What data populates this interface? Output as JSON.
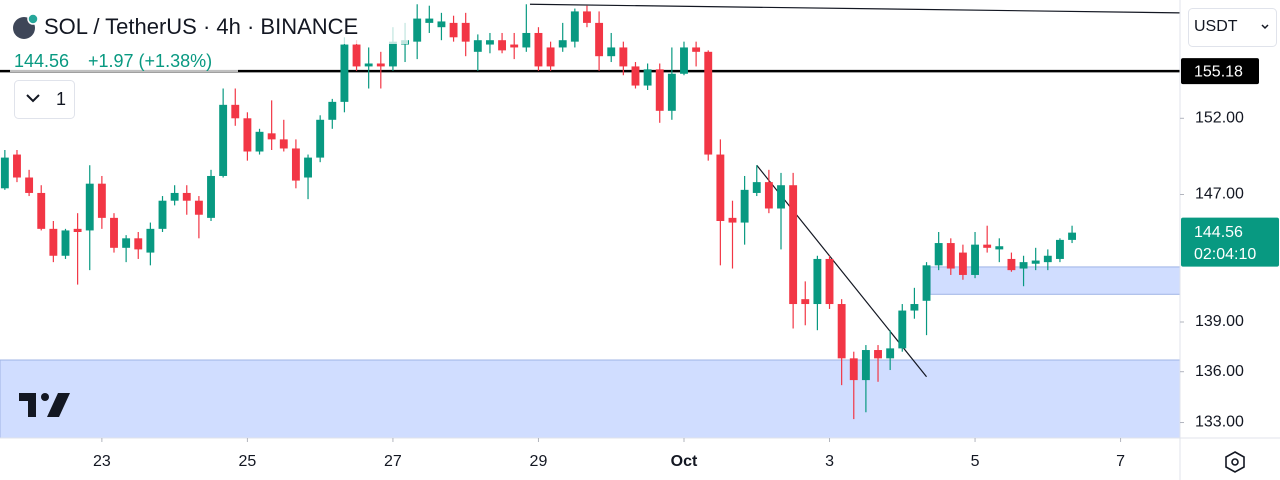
{
  "chart_data": {
    "type": "candlestick",
    "title": "SOL / TetherUS · 4h · BINANCE",
    "change": "+1.97 (+1.38%)",
    "indicators": "1",
    "currency": "USDT",
    "countdown": "02:04:10",
    "log": true,
    "up_color": "#089981",
    "down_color": "#f23645",
    "open": [
      147.4,
      149.6,
      148.1,
      147.1,
      144.8,
      143.1,
      144.8,
      144.7,
      147.7,
      145.5,
      143.6,
      144.2,
      143.3,
      144.8,
      146.6,
      147.1,
      146.6,
      145.5,
      148.2,
      152.9,
      152.0,
      149.8,
      151.0,
      150.6,
      150.0,
      148.1,
      149.4,
      151.9,
      153.1,
      157.0,
      155.5,
      155.7,
      155.5,
      157.0,
      157.2,
      158.5,
      158.2,
      158.5,
      158.5,
      156.5,
      157.0,
      157.3,
      157.0,
      156.8,
      157.8,
      156.8,
      156.8,
      157.2,
      159.3,
      158.5,
      156.2,
      156.8,
      155.5,
      154.2,
      155.3,
      152.5,
      155.0,
      156.8,
      156.5,
      149.6,
      145.5,
      145.2,
      147.1,
      147.8,
      146.1,
      147.6,
      140.4,
      140.1,
      142.9,
      140.1,
      136.8,
      135.5,
      137.3,
      136.8,
      137.4,
      139.7,
      140.3,
      142.5,
      143.9,
      143.3,
      141.9,
      143.8,
      143.5,
      142.9,
      142.3,
      142.6,
      142.7,
      142.9,
      144.1
    ],
    "high": [
      149.9,
      149.9,
      148.6,
      147.6,
      145.3,
      144.8,
      145.8,
      148.9,
      148.2,
      145.8,
      144.4,
      144.6,
      145.2,
      146.9,
      147.6,
      147.6,
      146.9,
      148.6,
      154.0,
      154.0,
      152.4,
      151.3,
      153.2,
      151.9,
      150.6,
      149.6,
      152.2,
      153.3,
      157.5,
      157.3,
      156.8,
      156.5,
      158.2,
      158.5,
      159.8,
      159.7,
      159.2,
      159.0,
      159.2,
      157.7,
      157.8,
      157.8,
      157.8,
      159.8,
      158.2,
      157.2,
      158.5,
      159.5,
      159.7,
      159.3,
      157.8,
      157.2,
      155.8,
      155.7,
      155.7,
      156.8,
      157.2,
      157.2,
      156.6,
      150.6,
      146.6,
      148.2,
      148.9,
      148.6,
      148.4,
      148.4,
      141.5,
      143.1,
      143.1,
      140.4,
      137.2,
      137.6,
      137.6,
      138.5,
      140.1,
      141.1,
      142.7,
      144.6,
      144.2,
      143.8,
      144.6,
      145.0,
      144.2,
      143.3,
      143.1,
      143.6,
      143.5,
      144.2,
      145.0
    ],
    "low": [
      147.3,
      147.8,
      146.9,
      144.7,
      142.7,
      142.9,
      141.3,
      142.2,
      144.8,
      143.3,
      142.7,
      142.9,
      142.5,
      144.6,
      146.3,
      145.7,
      144.2,
      145.3,
      148.1,
      151.5,
      149.2,
      149.6,
      149.9,
      149.8,
      147.4,
      146.7,
      149.1,
      151.3,
      152.4,
      155.2,
      154.0,
      154.0,
      155.2,
      155.8,
      156.0,
      157.8,
      157.3,
      157.2,
      156.2,
      155.2,
      156.4,
      156.4,
      156.0,
      156.5,
      155.2,
      155.2,
      156.5,
      156.8,
      158.2,
      155.2,
      155.8,
      154.9,
      154.0,
      153.9,
      151.7,
      151.9,
      154.9,
      155.5,
      149.2,
      142.5,
      142.3,
      143.8,
      146.9,
      145.8,
      143.5,
      138.6,
      138.8,
      138.5,
      139.8,
      135.2,
      133.2,
      133.6,
      135.4,
      136.1,
      137.2,
      139.2,
      138.2,
      142.2,
      141.9,
      141.6,
      141.7,
      143.3,
      142.7,
      142.1,
      141.2,
      142.2,
      142.2,
      142.7,
      143.9
    ],
    "close": [
      149.4,
      148.1,
      147.1,
      144.8,
      143.1,
      144.7,
      144.6,
      147.7,
      145.5,
      143.6,
      144.2,
      143.5,
      144.8,
      146.6,
      147.1,
      146.6,
      145.7,
      148.2,
      152.9,
      152.0,
      149.8,
      151.1,
      150.6,
      150.0,
      147.9,
      149.4,
      151.9,
      153.1,
      157.0,
      155.5,
      155.7,
      155.5,
      157.2,
      157.3,
      158.8,
      158.8,
      158.6,
      157.5,
      157.2,
      157.3,
      157.3,
      156.6,
      156.8,
      157.8,
      155.5,
      155.5,
      157.3,
      159.3,
      158.5,
      156.2,
      156.8,
      155.5,
      154.2,
      155.3,
      152.5,
      155.0,
      156.8,
      156.5,
      149.6,
      145.3,
      145.2,
      147.3,
      147.8,
      146.1,
      147.6,
      140.1,
      140.1,
      142.9,
      140.1,
      136.8,
      135.5,
      137.3,
      136.8,
      137.4,
      139.7,
      140.1,
      142.5,
      143.9,
      142.3,
      141.9,
      143.8,
      143.6,
      143.7,
      142.2,
      142.7,
      142.8,
      143.1,
      144.1,
      144.56
    ],
    "xlim": [
      -0.4,
      96.9
    ],
    "xticks": [
      {
        "value": 8,
        "label": "23"
      },
      {
        "value": 20,
        "label": "25"
      },
      {
        "value": 32,
        "label": "27"
      },
      {
        "value": 44,
        "label": "29"
      },
      {
        "value": 56,
        "label": "Oct"
      },
      {
        "value": 68,
        "label": "3"
      },
      {
        "value": 80,
        "label": "5"
      },
      {
        "value": 92,
        "label": "7"
      }
    ],
    "ylim": [
      132.1,
      160.1
    ],
    "yticks": [
      {
        "value": 152,
        "label": "152.00"
      },
      {
        "value": 147,
        "label": "147.00"
      },
      {
        "value": 139,
        "label": "139.00"
      },
      {
        "value": 136,
        "label": "136.00"
      },
      {
        "value": 133,
        "label": "133.00"
      }
    ],
    "hline": 155.18,
    "zones": [
      {
        "x": [
          -0.4,
          96.9
        ],
        "y": [
          136.7,
          132.1
        ]
      },
      {
        "x": [
          76.3,
          96.9
        ],
        "y": [
          142.4,
          140.7
        ]
      }
    ],
    "trendlines": [
      {
        "x": [
          43.3,
          96.9
        ],
        "y": [
          159.8,
          159.2
        ]
      },
      {
        "x": [
          62.0,
          76.0
        ],
        "y": [
          148.9,
          135.7
        ]
      }
    ]
  }
}
